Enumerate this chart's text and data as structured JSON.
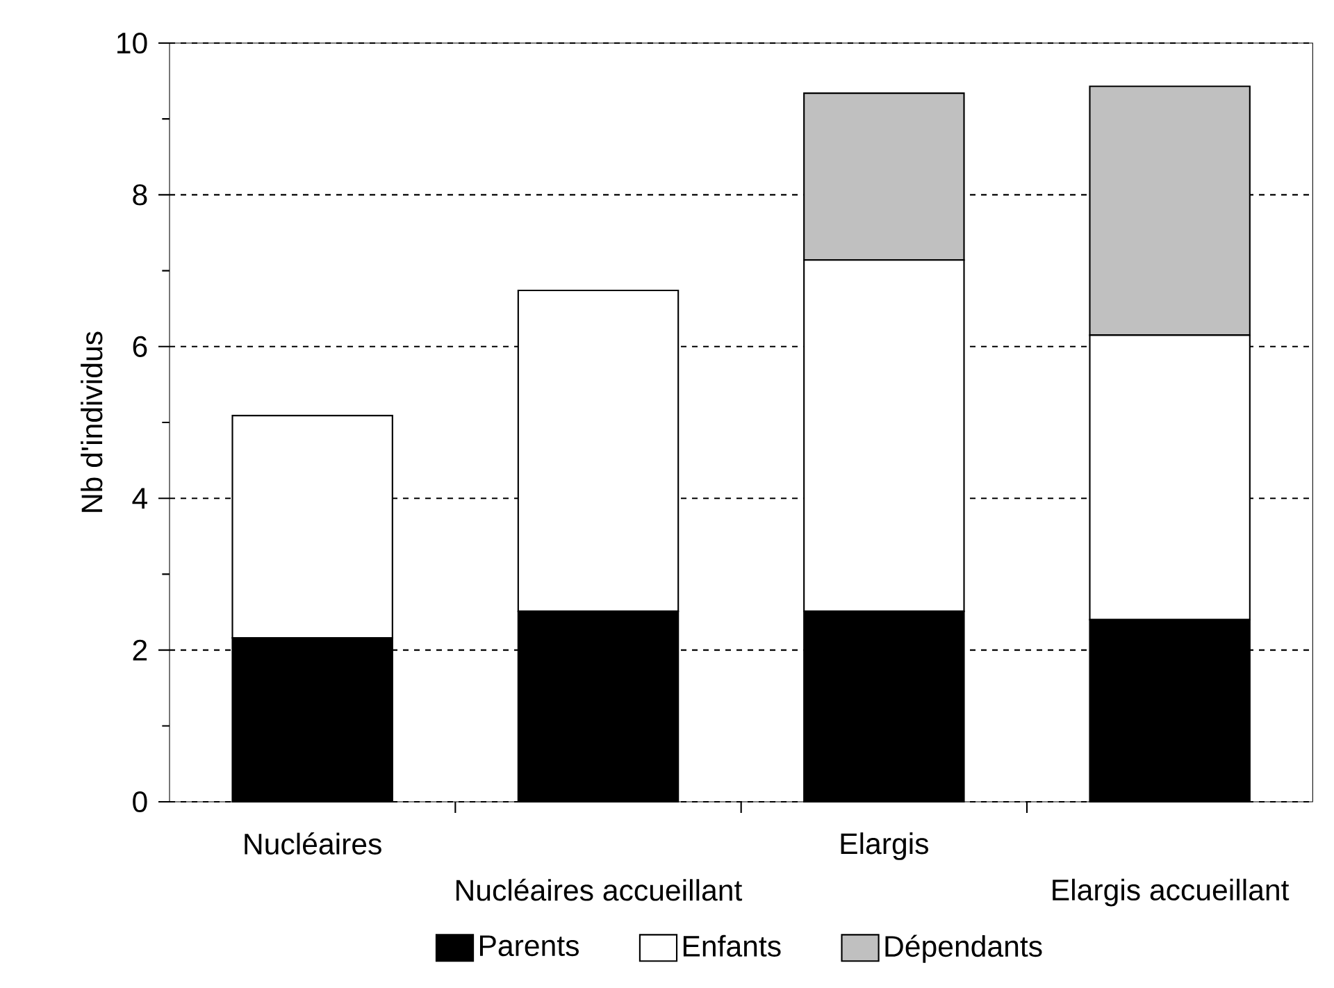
{
  "chart_data": {
    "type": "bar",
    "stacked": true,
    "ylabel": "Nb d'individus",
    "categories": [
      "Nucléaires",
      "Nucléaires accueillant",
      "Elargis",
      "Elargis accueillant"
    ],
    "series": [
      {
        "name": "Parents",
        "color": "#000000",
        "values": [
          2.16,
          2.51,
          2.51,
          2.4
        ]
      },
      {
        "name": "Enfants",
        "color": "#ffffff",
        "values": [
          2.93,
          4.23,
          4.63,
          3.75
        ]
      },
      {
        "name": "Dépendants",
        "color": "#c0c0c0",
        "values": [
          null,
          null,
          2.2,
          3.28
        ]
      }
    ],
    "ylim": [
      0,
      10
    ],
    "yticks": [
      0,
      {
        "value": 1,
        "label": null
      },
      2,
      {
        "value": 3,
        "label": null
      },
      4,
      {
        "value": 5,
        "label": null
      },
      6,
      {
        "value": 7,
        "label": null
      },
      8,
      {
        "value": 9,
        "label": null
      },
      10
    ],
    "grid": "y",
    "legend": "bottom"
  }
}
